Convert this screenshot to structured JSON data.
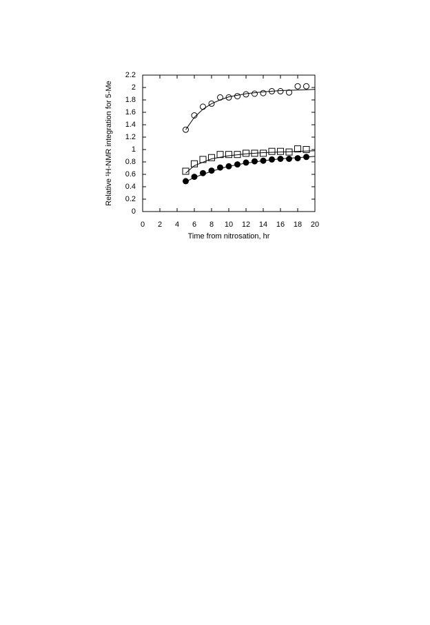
{
  "chart_data": {
    "type": "scatter",
    "xlabel": "Time from nitrosation, hr",
    "ylabel": "Relative ¹H-NMR integration for 5-Me",
    "xlim": [
      0,
      20
    ],
    "xticks": [
      0,
      2,
      4,
      6,
      8,
      10,
      12,
      14,
      16,
      18,
      20
    ],
    "ylim": [
      0,
      2.2
    ],
    "yticks": [
      0,
      0.2,
      0.4,
      0.6,
      0.8,
      1,
      1.2,
      1.4,
      1.6,
      1.8,
      2,
      2.2
    ],
    "series": [
      {
        "mode": "markers",
        "marker": "circle",
        "filled": false,
        "color": "#000000",
        "x": [
          5,
          6,
          7,
          8,
          9,
          10,
          11,
          12,
          13,
          14,
          15,
          16,
          17,
          18,
          19
        ],
        "values": [
          1.32,
          1.55,
          1.69,
          1.74,
          1.84,
          1.84,
          1.86,
          1.89,
          1.9,
          1.91,
          1.94,
          1.94,
          1.92,
          2.02,
          2.02
        ]
      },
      {
        "mode": "line",
        "color": "#000000",
        "x": [
          5,
          6,
          7,
          8,
          9,
          10,
          12,
          14,
          16,
          18,
          20
        ],
        "values": [
          1.32,
          1.52,
          1.65,
          1.74,
          1.8,
          1.85,
          1.9,
          1.93,
          1.95,
          1.96,
          1.97
        ]
      },
      {
        "mode": "markers",
        "marker": "square",
        "filled": false,
        "color": "#000000",
        "x": [
          5,
          6,
          7,
          8,
          9,
          10,
          11,
          12,
          13,
          14,
          15,
          16,
          17,
          18,
          19
        ],
        "values": [
          0.65,
          0.77,
          0.84,
          0.87,
          0.92,
          0.92,
          0.92,
          0.94,
          0.94,
          0.94,
          0.97,
          0.97,
          0.96,
          1.01,
          1.0
        ]
      },
      {
        "mode": "line",
        "color": "#000000",
        "x": [
          5,
          6,
          8,
          10,
          12,
          14,
          16,
          18,
          20
        ],
        "values": [
          0.62,
          0.74,
          0.85,
          0.9,
          0.93,
          0.95,
          0.96,
          0.97,
          0.98
        ]
      },
      {
        "mode": "markers",
        "marker": "circle",
        "filled": true,
        "color": "#000000",
        "x": [
          5,
          6,
          7,
          8,
          9,
          10,
          11,
          12,
          13,
          14,
          15,
          16,
          17,
          18,
          19
        ],
        "values": [
          0.49,
          0.56,
          0.62,
          0.66,
          0.71,
          0.73,
          0.76,
          0.79,
          0.81,
          0.82,
          0.84,
          0.85,
          0.85,
          0.86,
          0.88
        ]
      },
      {
        "mode": "line",
        "color": "#000000",
        "x": [
          5,
          6,
          8,
          10,
          12,
          14,
          16,
          18,
          20
        ],
        "values": [
          0.48,
          0.55,
          0.65,
          0.73,
          0.78,
          0.82,
          0.85,
          0.87,
          0.89
        ]
      }
    ]
  }
}
